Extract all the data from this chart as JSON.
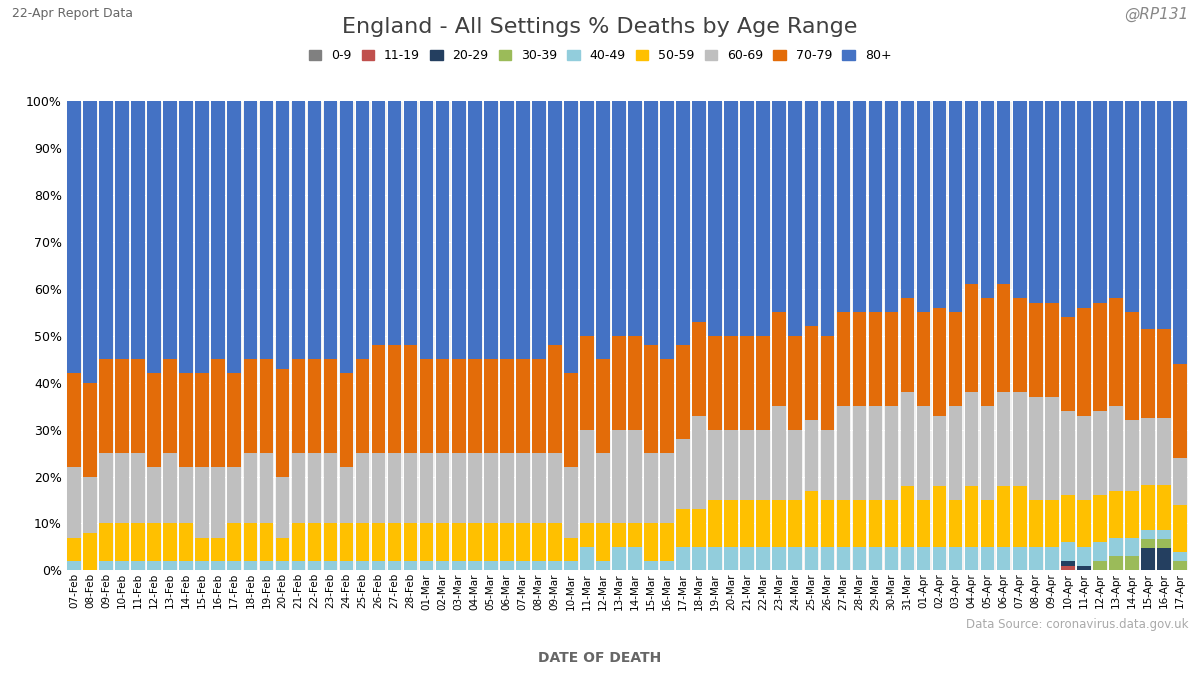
{
  "title": "England - All Settings % Deaths by Age Range",
  "subtitle_left": "22-Apr Report Data",
  "subtitle_right": "@RP131",
  "xlabel": "DATE OF DEATH",
  "source": "Data Source: coronavirus.data.gov.uk",
  "background_color": "#ffffff",
  "plot_background": "#f2f2f2",
  "age_groups": [
    "0-9",
    "11-19",
    "20-29",
    "30-39",
    "40-49",
    "50-59",
    "60-69",
    "70-79",
    "80+"
  ],
  "colors": [
    "#808080",
    "#c0504d",
    "#243f60",
    "#9bbb59",
    "#92cddc",
    "#ffc000",
    "#bfbfbf",
    "#e36c09",
    "#4472c4"
  ],
  "dates": [
    "07-Feb",
    "08-Feb",
    "09-Feb",
    "10-Feb",
    "11-Feb",
    "12-Feb",
    "13-Feb",
    "14-Feb",
    "15-Feb",
    "16-Feb",
    "17-Feb",
    "18-Feb",
    "19-Feb",
    "20-Feb",
    "21-Feb",
    "22-Feb",
    "23-Feb",
    "24-Feb",
    "25-Feb",
    "26-Feb",
    "27-Feb",
    "28-Feb",
    "01-Mar",
    "02-Mar",
    "03-Mar",
    "04-Mar",
    "05-Mar",
    "06-Mar",
    "07-Mar",
    "08-Mar",
    "09-Mar",
    "10-Mar",
    "11-Mar",
    "12-Mar",
    "13-Mar",
    "14-Mar",
    "15-Mar",
    "16-Mar",
    "17-Mar",
    "18-Mar",
    "19-Mar",
    "20-Mar",
    "21-Mar",
    "22-Mar",
    "23-Mar",
    "24-Mar",
    "25-Mar",
    "26-Mar",
    "27-Mar",
    "28-Mar",
    "29-Mar",
    "30-Mar",
    "31-Mar",
    "01-Apr",
    "02-Apr",
    "03-Apr",
    "04-Apr",
    "05-Apr",
    "06-Apr",
    "07-Apr",
    "08-Apr",
    "09-Apr",
    "10-Apr",
    "11-Apr",
    "12-Apr",
    "13-Apr",
    "14-Apr",
    "15-Apr",
    "16-Apr",
    "17-Apr"
  ],
  "pct": {
    "0-9": [
      0,
      0,
      0,
      0,
      0,
      0,
      0,
      0,
      0,
      0,
      0,
      0,
      0,
      0,
      0,
      0,
      0,
      0,
      0,
      0,
      0,
      0,
      0,
      0,
      0,
      0,
      0,
      0,
      0,
      0,
      0,
      0,
      0,
      0,
      0,
      0,
      0,
      0,
      0,
      0,
      0,
      0,
      0,
      0,
      0,
      0,
      0,
      0,
      0,
      0,
      0,
      0,
      0,
      0,
      0,
      0,
      0,
      0,
      0,
      0,
      0,
      0,
      0,
      0,
      0,
      0,
      0,
      0,
      0,
      0
    ],
    "11-19": [
      0,
      0,
      0,
      0,
      0,
      0,
      0,
      0,
      0,
      0,
      0,
      0,
      0,
      0,
      0,
      0,
      0,
      0,
      0,
      0,
      0,
      0,
      0,
      0,
      0,
      0,
      0,
      0,
      0,
      0,
      0,
      0,
      0,
      0,
      0,
      0,
      0,
      0,
      0,
      0,
      0,
      0,
      0,
      0,
      0,
      0,
      0,
      0,
      0,
      0,
      0,
      0,
      0,
      0,
      0,
      0,
      0,
      0,
      0,
      0,
      0,
      0,
      1,
      0,
      0,
      0,
      0,
      0,
      0,
      0
    ],
    "20-29": [
      0,
      0,
      0,
      0,
      0,
      0,
      0,
      0,
      0,
      0,
      0,
      0,
      0,
      0,
      0,
      0,
      0,
      0,
      0,
      0,
      0,
      0,
      0,
      0,
      0,
      0,
      0,
      0,
      0,
      0,
      0,
      0,
      0,
      0,
      0,
      0,
      0,
      0,
      0,
      0,
      0,
      0,
      0,
      0,
      0,
      0,
      0,
      0,
      0,
      0,
      0,
      0,
      0,
      0,
      0,
      0,
      0,
      0,
      0,
      0,
      0,
      0,
      1,
      1,
      0,
      0,
      0,
      5,
      5,
      0
    ],
    "30-39": [
      0,
      0,
      0,
      0,
      0,
      0,
      0,
      0,
      0,
      0,
      0,
      0,
      0,
      0,
      0,
      0,
      0,
      0,
      0,
      0,
      0,
      0,
      0,
      0,
      0,
      0,
      0,
      0,
      0,
      0,
      0,
      0,
      0,
      0,
      0,
      0,
      0,
      0,
      0,
      0,
      0,
      0,
      0,
      0,
      0,
      0,
      0,
      0,
      0,
      0,
      0,
      0,
      0,
      0,
      0,
      0,
      0,
      0,
      0,
      0,
      0,
      0,
      0,
      0,
      2,
      3,
      3,
      2,
      2,
      2
    ],
    "40-49": [
      2,
      0,
      2,
      2,
      2,
      2,
      2,
      2,
      2,
      2,
      2,
      2,
      2,
      2,
      2,
      2,
      2,
      2,
      2,
      2,
      2,
      2,
      2,
      2,
      2,
      2,
      2,
      2,
      2,
      2,
      2,
      2,
      5,
      2,
      5,
      5,
      2,
      2,
      5,
      5,
      5,
      5,
      5,
      5,
      5,
      5,
      5,
      5,
      5,
      5,
      5,
      5,
      5,
      5,
      5,
      5,
      5,
      5,
      5,
      5,
      5,
      5,
      4,
      4,
      4,
      4,
      4,
      2,
      2,
      2
    ],
    "50-59": [
      5,
      8,
      8,
      8,
      8,
      8,
      8,
      8,
      5,
      5,
      8,
      8,
      8,
      5,
      8,
      8,
      8,
      8,
      8,
      8,
      8,
      8,
      8,
      8,
      8,
      8,
      8,
      8,
      8,
      8,
      8,
      5,
      5,
      8,
      5,
      5,
      8,
      8,
      8,
      8,
      10,
      10,
      10,
      10,
      10,
      10,
      12,
      10,
      10,
      10,
      10,
      10,
      13,
      10,
      13,
      10,
      13,
      10,
      13,
      13,
      10,
      10,
      10,
      10,
      10,
      10,
      10,
      10,
      10,
      10
    ],
    "60-69": [
      15,
      12,
      15,
      15,
      15,
      12,
      15,
      12,
      15,
      15,
      12,
      15,
      15,
      13,
      15,
      15,
      15,
      12,
      15,
      15,
      15,
      15,
      15,
      15,
      15,
      15,
      15,
      15,
      15,
      15,
      15,
      15,
      20,
      15,
      20,
      20,
      15,
      15,
      15,
      20,
      15,
      15,
      15,
      15,
      20,
      15,
      15,
      15,
      20,
      20,
      20,
      20,
      20,
      20,
      15,
      20,
      20,
      20,
      20,
      20,
      22,
      22,
      18,
      18,
      18,
      18,
      15,
      15,
      15,
      10
    ],
    "70-79": [
      20,
      20,
      20,
      20,
      20,
      20,
      20,
      20,
      20,
      23,
      20,
      20,
      20,
      23,
      20,
      20,
      20,
      20,
      20,
      23,
      23,
      23,
      20,
      20,
      20,
      20,
      20,
      20,
      20,
      20,
      23,
      20,
      20,
      20,
      20,
      20,
      23,
      20,
      20,
      20,
      20,
      20,
      20,
      20,
      20,
      20,
      20,
      20,
      20,
      20,
      20,
      20,
      20,
      20,
      23,
      20,
      23,
      23,
      23,
      20,
      20,
      20,
      20,
      23,
      23,
      23,
      23,
      20,
      20,
      20
    ],
    "80+": [
      58,
      60,
      55,
      55,
      55,
      58,
      55,
      58,
      58,
      55,
      58,
      55,
      55,
      57,
      55,
      55,
      55,
      58,
      55,
      52,
      52,
      52,
      55,
      55,
      55,
      55,
      55,
      55,
      55,
      55,
      52,
      58,
      50,
      55,
      50,
      50,
      52,
      55,
      52,
      47,
      50,
      50,
      50,
      50,
      45,
      50,
      48,
      50,
      45,
      45,
      45,
      45,
      42,
      45,
      44,
      45,
      39,
      42,
      39,
      42,
      43,
      43,
      46,
      44,
      43,
      42,
      45,
      51,
      51,
      56
    ]
  }
}
